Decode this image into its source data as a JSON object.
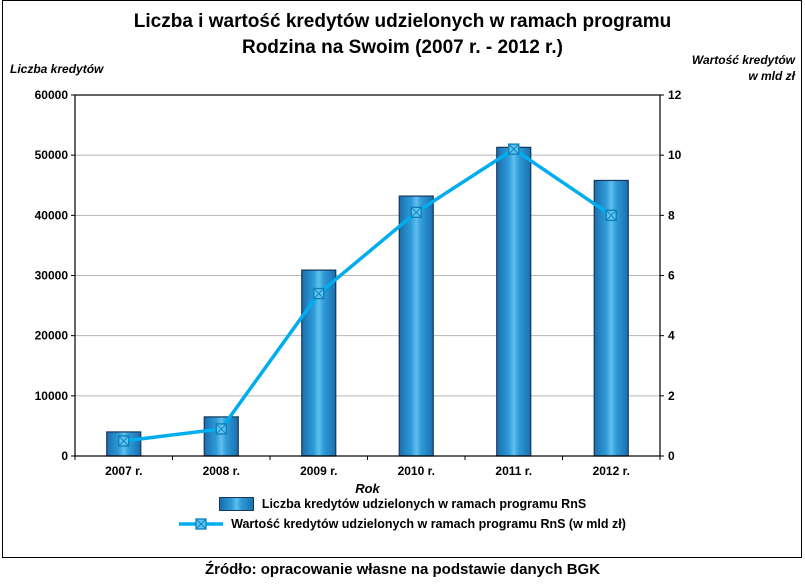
{
  "title": {
    "line1": "Liczba i wartość kredytów udzielonych w ramach programu",
    "line2": "Rodzina na Swoim (2007 r. - 2012 r.)"
  },
  "axes": {
    "left_title": "Liczba kredytów",
    "right_title_line1": "Wartość kredytów",
    "right_title_line2": "w mld zł",
    "x_title": "Rok"
  },
  "source": "Źródło: opracowanie własne na podstawie danych BGK",
  "chart_data": {
    "type": "combo-bar-line",
    "categories": [
      "2007 r.",
      "2008 r.",
      "2009 r.",
      "2010 r.",
      "2011 r.",
      "2012 r."
    ],
    "series": [
      {
        "name": "Liczba kredytów udzielonych w ramach programu RnS",
        "type": "bar",
        "axis": "left",
        "color": "#1f8dd0",
        "values": [
          4000,
          6500,
          30900,
          43200,
          51300,
          45800
        ]
      },
      {
        "name": "Wartość kredytów udzielonych w ramach programu RnS (w mld zł)",
        "type": "line",
        "axis": "right",
        "color": "#00aeef",
        "values": [
          0.5,
          0.9,
          5.4,
          8.1,
          10.2,
          8.0
        ]
      }
    ],
    "left_axis": {
      "title": "Liczba kredytów",
      "min": 0,
      "max": 60000,
      "step": 10000
    },
    "right_axis": {
      "title": "Wartość kredytów w mld zł",
      "min": 0,
      "max": 12,
      "step": 2
    },
    "x_axis": {
      "title": "Rok"
    },
    "grid": true,
    "legend_position": "bottom"
  }
}
